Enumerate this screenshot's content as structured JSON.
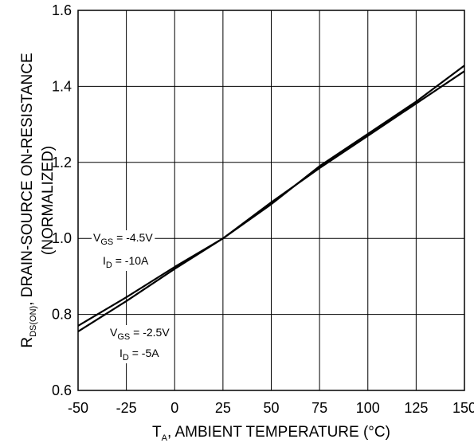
{
  "chart_data": {
    "type": "line",
    "title": "",
    "xlabel": {
      "main": "T",
      "sub": "A",
      "rest": ", AMBIENT TEMPERATURE  (°C)"
    },
    "ylabel": {
      "line1_main": "R",
      "line1_sub": "DS(ON)",
      "line1_rest": ", DRAIN-SOURCE ON-RESISTANCE",
      "line2": "(NORMALIZED)"
    },
    "xlim": [
      -50,
      150
    ],
    "ylim": [
      0.6,
      1.6
    ],
    "xticks": [
      "-50",
      "-25",
      "0",
      "25",
      "50",
      "75",
      "100",
      "125",
      "150"
    ],
    "yticks": [
      "0.6",
      "0.8",
      "1.0",
      "1.2",
      "1.4",
      "1.6"
    ],
    "grid": true,
    "series": [
      {
        "x": [
          -50,
          -25,
          0,
          25,
          50,
          75,
          100,
          125,
          150
        ],
        "y": [
          0.77,
          0.845,
          0.925,
          1.0,
          1.09,
          1.19,
          1.275,
          1.36,
          1.455
        ]
      },
      {
        "x": [
          -50,
          -25,
          0,
          25,
          50,
          75,
          100,
          125,
          150
        ],
        "y": [
          0.755,
          0.835,
          0.92,
          1.0,
          1.095,
          1.185,
          1.27,
          1.355,
          1.44
        ]
      }
    ],
    "annotations": [
      {
        "l1_main": "V",
        "l1_sub": "GS",
        "l1_rest": " = -4.5V",
        "l2_main": "I",
        "l2_sub": "D",
        "l2_rest": " = -10A"
      },
      {
        "l1_main": "V",
        "l1_sub": "GS",
        "l1_rest": " = -2.5V",
        "l2_main": "I",
        "l2_sub": "D",
        "l2_rest": " = -5A"
      }
    ]
  }
}
